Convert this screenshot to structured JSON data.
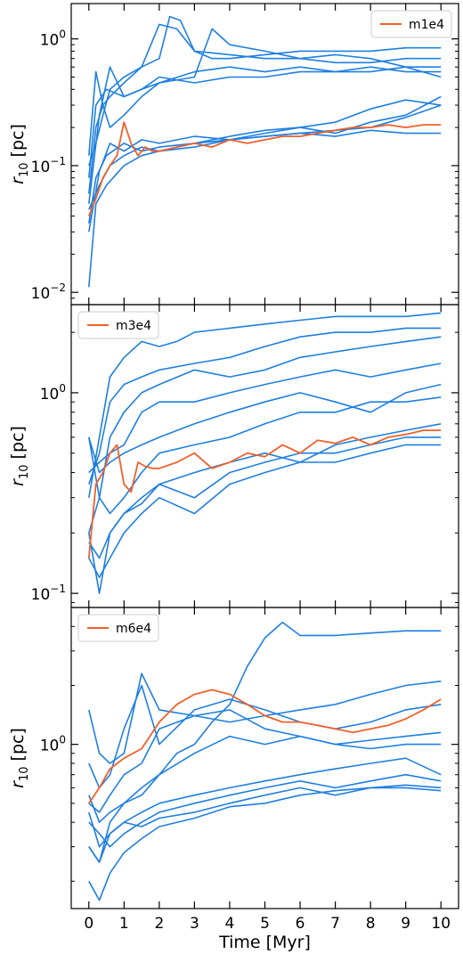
{
  "colors": {
    "series_blue": "#1f7fe0",
    "highlight": "#f0602a",
    "axes": "#000000"
  },
  "x_axis": {
    "label": "Time [Myr]",
    "ticks": [
      0,
      1,
      2,
      3,
      4,
      5,
      6,
      7,
      8,
      9,
      10
    ],
    "tick_labels": [
      "0",
      "1",
      "2",
      "3",
      "4",
      "5",
      "6",
      "7",
      "8",
      "9",
      "10"
    ],
    "range": [
      -0.5,
      10.5
    ]
  },
  "chart_data": [
    {
      "type": "line",
      "yscale": "log",
      "ylabel_main": "r",
      "ylabel_sub": "10",
      "ylabel_unit": "[pc]",
      "ylim": [
        0.008,
        1.9
      ],
      "yticks": [
        {
          "value": 1.0,
          "base": "10",
          "exp": "0"
        },
        {
          "value": 0.1,
          "base": "10",
          "exp": "−1"
        },
        {
          "value": 0.01,
          "base": "10",
          "exp": "−2"
        }
      ],
      "legend": {
        "label": "m1e4",
        "position": "top-right"
      },
      "highlight": {
        "x": [
          0,
          0.2,
          0.4,
          0.6,
          0.8,
          1,
          1.2,
          1.4,
          1.6,
          1.8,
          2,
          2.5,
          3,
          3.5,
          4,
          4.5,
          5,
          5.5,
          6,
          6.5,
          7,
          7.5,
          8,
          8.5,
          9,
          9.5,
          10
        ],
        "y": [
          0.04,
          0.055,
          0.08,
          0.1,
          0.12,
          0.22,
          0.15,
          0.12,
          0.14,
          0.13,
          0.13,
          0.14,
          0.15,
          0.14,
          0.16,
          0.15,
          0.16,
          0.17,
          0.17,
          0.18,
          0.19,
          0.2,
          0.2,
          0.21,
          0.2,
          0.21,
          0.21
        ]
      },
      "others": [
        {
          "x": [
            0,
            0.2,
            0.4,
            0.6,
            1,
            1.5,
            2,
            2.5,
            3,
            3.5,
            4,
            5,
            6,
            7,
            8,
            9,
            10
          ],
          "y": [
            0.06,
            0.2,
            0.3,
            0.35,
            0.45,
            0.6,
            1.3,
            1.2,
            0.8,
            0.7,
            0.7,
            0.75,
            0.8,
            0.8,
            0.8,
            0.85,
            0.85
          ]
        },
        {
          "x": [
            0,
            0.2,
            0.4,
            0.6,
            1,
            1.5,
            2,
            2.3,
            2.6,
            3,
            4,
            5,
            6,
            7,
            8,
            9,
            10
          ],
          "y": [
            0.1,
            0.15,
            0.25,
            0.4,
            0.5,
            0.6,
            0.7,
            1.5,
            1.4,
            0.8,
            0.75,
            0.7,
            0.7,
            0.65,
            0.65,
            0.7,
            0.7
          ]
        },
        {
          "x": [
            0,
            0.2,
            0.4,
            0.6,
            1,
            1.5,
            2,
            3,
            3.5,
            4,
            5,
            6,
            7,
            8,
            9,
            10
          ],
          "y": [
            0.12,
            0.55,
            0.3,
            0.2,
            0.25,
            0.35,
            0.45,
            0.5,
            1.2,
            0.9,
            0.8,
            0.7,
            0.75,
            0.7,
            0.6,
            0.6
          ]
        },
        {
          "x": [
            0,
            0.2,
            0.5,
            1,
            1.5,
            2,
            3,
            4,
            5,
            6,
            7,
            8,
            9,
            10
          ],
          "y": [
            0.08,
            0.3,
            0.4,
            0.35,
            0.4,
            0.45,
            0.55,
            0.6,
            0.55,
            0.6,
            0.55,
            0.55,
            0.6,
            0.5
          ]
        },
        {
          "x": [
            0,
            0.3,
            0.6,
            1,
            1.5,
            2,
            3,
            4,
            5,
            6,
            7,
            8,
            9,
            10
          ],
          "y": [
            0.05,
            0.25,
            0.6,
            0.35,
            0.4,
            0.5,
            0.45,
            0.5,
            0.5,
            0.55,
            0.55,
            0.6,
            0.55,
            0.55
          ]
        },
        {
          "x": [
            0,
            0.3,
            0.6,
            1,
            1.5,
            2,
            3,
            4,
            5,
            6,
            7,
            8,
            9,
            10
          ],
          "y": [
            0.03,
            0.09,
            0.15,
            0.13,
            0.16,
            0.15,
            0.17,
            0.16,
            0.18,
            0.2,
            0.18,
            0.22,
            0.25,
            0.35
          ]
        },
        {
          "x": [
            0,
            0.2,
            0.5,
            1,
            1.5,
            2,
            3,
            4,
            5,
            6,
            7,
            8,
            9,
            10
          ],
          "y": [
            0.011,
            0.05,
            0.07,
            0.1,
            0.12,
            0.13,
            0.14,
            0.16,
            0.17,
            0.18,
            0.19,
            0.2,
            0.24,
            0.3
          ]
        },
        {
          "x": [
            0,
            0.2,
            0.5,
            1,
            1.5,
            2,
            3,
            4,
            5,
            6,
            7,
            8,
            9,
            10
          ],
          "y": [
            0.035,
            0.08,
            0.12,
            0.15,
            0.13,
            0.14,
            0.15,
            0.17,
            0.19,
            0.2,
            0.22,
            0.28,
            0.33,
            0.3
          ]
        },
        {
          "x": [
            0,
            0.3,
            0.6,
            1,
            1.5,
            2,
            3,
            4,
            5,
            6,
            7,
            8,
            9,
            10
          ],
          "y": [
            0.045,
            0.07,
            0.1,
            0.12,
            0.14,
            0.13,
            0.15,
            0.16,
            0.17,
            0.18,
            0.17,
            0.19,
            0.18,
            0.18
          ]
        }
      ]
    },
    {
      "type": "line",
      "yscale": "log",
      "ylabel_main": "r",
      "ylabel_sub": "10",
      "ylabel_unit": "[pc]",
      "ylim": [
        0.085,
        2.75
      ],
      "yticks": [
        {
          "value": 1.0,
          "base": "10",
          "exp": "0"
        },
        {
          "value": 0.1,
          "base": "10",
          "exp": "−1"
        }
      ],
      "legend": {
        "label": "m3e4",
        "position": "top-left"
      },
      "highlight": {
        "x": [
          0,
          0.2,
          0.4,
          0.6,
          0.8,
          1,
          1.2,
          1.4,
          1.6,
          1.8,
          2,
          2.5,
          3,
          3.5,
          4,
          4.5,
          5,
          5.5,
          6,
          6.5,
          7,
          7.5,
          8,
          8.5,
          9,
          9.5,
          10
        ],
        "y": [
          0.15,
          0.35,
          0.4,
          0.5,
          0.55,
          0.35,
          0.32,
          0.45,
          0.43,
          0.42,
          0.42,
          0.45,
          0.5,
          0.42,
          0.45,
          0.5,
          0.48,
          0.55,
          0.5,
          0.58,
          0.56,
          0.6,
          0.55,
          0.6,
          0.62,
          0.65,
          0.65
        ]
      },
      "others": [
        {
          "x": [
            0,
            0.3,
            0.6,
            1,
            1.5,
            2,
            2.5,
            3,
            4,
            5,
            6,
            7,
            8,
            9,
            10
          ],
          "y": [
            0.3,
            0.6,
            1.2,
            1.5,
            1.8,
            1.7,
            1.8,
            2.0,
            2.1,
            2.2,
            2.3,
            2.4,
            2.4,
            2.4,
            2.5
          ]
        },
        {
          "x": [
            0,
            0.3,
            0.6,
            1,
            1.5,
            2,
            3,
            4,
            5,
            6,
            7,
            8,
            9,
            10
          ],
          "y": [
            0.35,
            0.5,
            0.9,
            1.1,
            1.2,
            1.3,
            1.4,
            1.5,
            1.7,
            1.9,
            2.0,
            2.0,
            2.1,
            2.1
          ]
        },
        {
          "x": [
            0,
            0.3,
            0.6,
            1,
            1.5,
            2,
            3,
            4,
            5,
            6,
            7,
            8,
            9,
            10
          ],
          "y": [
            0.2,
            0.3,
            0.6,
            0.8,
            1.0,
            1.1,
            1.3,
            1.2,
            1.3,
            1.5,
            1.6,
            1.7,
            1.8,
            1.9
          ]
        },
        {
          "x": [
            0,
            0.3,
            0.6,
            1,
            1.5,
            2,
            3,
            4,
            5,
            6,
            7,
            8,
            9,
            10
          ],
          "y": [
            0.4,
            0.45,
            0.5,
            0.55,
            0.8,
            0.9,
            0.9,
            1.0,
            1.1,
            1.2,
            1.3,
            1.2,
            1.3,
            1.4
          ]
        },
        {
          "x": [
            0,
            0.3,
            0.6,
            1,
            1.5,
            2,
            3,
            4,
            5,
            6,
            7,
            8,
            9,
            10
          ],
          "y": [
            0.6,
            0.4,
            0.45,
            0.5,
            0.55,
            0.6,
            0.7,
            0.8,
            0.9,
            1.0,
            0.9,
            0.8,
            1.0,
            1.1
          ]
        },
        {
          "x": [
            0,
            0.3,
            0.6,
            1,
            1.5,
            2,
            3,
            4,
            5,
            6,
            7,
            8,
            9,
            10
          ],
          "y": [
            0.6,
            0.3,
            0.25,
            0.3,
            0.4,
            0.5,
            0.55,
            0.6,
            0.7,
            0.8,
            0.8,
            0.9,
            0.9,
            0.95
          ]
        },
        {
          "x": [
            0,
            0.3,
            0.6,
            1,
            1.5,
            2,
            3,
            4,
            5,
            6,
            7,
            8,
            9,
            10
          ],
          "y": [
            0.2,
            0.1,
            0.2,
            0.25,
            0.3,
            0.35,
            0.4,
            0.45,
            0.5,
            0.45,
            0.55,
            0.6,
            0.65,
            0.7
          ]
        },
        {
          "x": [
            0,
            0.3,
            0.6,
            1,
            1.5,
            2,
            3,
            4,
            5,
            6,
            7,
            8,
            9,
            10
          ],
          "y": [
            0.18,
            0.15,
            0.2,
            0.25,
            0.28,
            0.35,
            0.3,
            0.4,
            0.45,
            0.5,
            0.5,
            0.55,
            0.6,
            0.6
          ]
        },
        {
          "x": [
            0,
            0.3,
            0.6,
            1,
            1.5,
            2,
            3,
            4,
            5,
            6,
            7,
            8,
            9,
            10
          ],
          "y": [
            0.15,
            0.12,
            0.15,
            0.2,
            0.25,
            0.3,
            0.25,
            0.35,
            0.4,
            0.45,
            0.45,
            0.5,
            0.55,
            0.55
          ]
        }
      ]
    },
    {
      "type": "line",
      "yscale": "log",
      "ylabel_main": "r",
      "ylabel_sub": "10",
      "ylabel_unit": "[pc]",
      "ylim": [
        0.145,
        5.0
      ],
      "yticks": [
        {
          "value": 1.0,
          "base": "10",
          "exp": "0"
        }
      ],
      "legend": {
        "label": "m6e4",
        "position": "top-left"
      },
      "highlight": {
        "x": [
          0,
          0.3,
          0.6,
          1,
          1.5,
          2,
          2.5,
          3,
          3.5,
          4,
          4.5,
          5,
          5.5,
          6,
          6.5,
          7,
          7.5,
          8,
          8.5,
          9,
          9.5,
          10
        ],
        "y": [
          0.5,
          0.6,
          0.75,
          0.85,
          0.95,
          1.3,
          1.6,
          1.8,
          1.9,
          1.8,
          1.6,
          1.4,
          1.3,
          1.3,
          1.25,
          1.2,
          1.15,
          1.2,
          1.25,
          1.35,
          1.5,
          1.7
        ]
      },
      "others": [
        {
          "x": [
            0,
            0.3,
            0.6,
            1,
            1.5,
            2,
            2.5,
            3,
            3.5,
            4,
            4.5,
            5,
            5.5,
            6,
            7,
            8,
            9,
            10
          ],
          "y": [
            0.3,
            0.25,
            0.4,
            0.5,
            0.55,
            0.7,
            0.9,
            1.0,
            1.3,
            1.6,
            2.5,
            3.5,
            4.2,
            3.6,
            3.6,
            3.7,
            3.8,
            3.8
          ]
        },
        {
          "x": [
            0,
            0.3,
            0.6,
            1,
            1.5,
            2,
            3,
            4,
            5,
            6,
            7,
            8,
            9,
            10
          ],
          "y": [
            1.5,
            0.9,
            0.8,
            0.9,
            2.3,
            1.5,
            1.4,
            1.3,
            1.4,
            1.5,
            1.6,
            1.8,
            2.0,
            2.1
          ]
        },
        {
          "x": [
            0,
            0.3,
            0.6,
            1,
            1.5,
            2,
            3,
            4,
            5,
            6,
            7,
            8,
            9,
            10
          ],
          "y": [
            0.8,
            0.6,
            0.7,
            1.2,
            2.0,
            1.0,
            1.5,
            1.7,
            1.5,
            1.3,
            1.2,
            1.3,
            1.5,
            1.6
          ]
        },
        {
          "x": [
            0,
            0.3,
            0.6,
            1,
            1.5,
            2,
            3,
            4,
            5,
            6,
            7,
            8,
            9,
            10
          ],
          "y": [
            0.5,
            0.45,
            0.55,
            0.7,
            0.8,
            1.2,
            1.4,
            1.5,
            1.2,
            1.1,
            1.0,
            1.05,
            1.1,
            1.15
          ]
        },
        {
          "x": [
            0,
            0.3,
            0.6,
            1,
            1.5,
            2,
            3,
            4,
            5,
            6,
            7,
            8,
            9,
            10
          ],
          "y": [
            0.55,
            0.4,
            0.45,
            0.5,
            0.6,
            0.7,
            0.9,
            1.1,
            1.0,
            1.1,
            1.0,
            0.95,
            1.0,
            1.0
          ]
        },
        {
          "x": [
            0,
            0.3,
            0.6,
            1,
            1.5,
            2,
            3,
            4,
            5,
            6,
            7,
            8,
            9,
            10
          ],
          "y": [
            0.45,
            0.3,
            0.35,
            0.4,
            0.45,
            0.5,
            0.55,
            0.6,
            0.65,
            0.7,
            0.75,
            0.8,
            0.85,
            0.7
          ]
        },
        {
          "x": [
            0,
            0.3,
            0.6,
            1,
            1.5,
            2,
            3,
            4,
            5,
            6,
            7,
            8,
            9,
            10
          ],
          "y": [
            0.4,
            0.35,
            0.3,
            0.35,
            0.4,
            0.45,
            0.5,
            0.55,
            0.6,
            0.65,
            0.6,
            0.65,
            0.7,
            0.65
          ]
        },
        {
          "x": [
            0,
            0.3,
            0.6,
            1,
            1.5,
            2,
            3,
            4,
            5,
            6,
            7,
            8,
            9,
            10
          ],
          "y": [
            0.3,
            0.25,
            0.35,
            0.4,
            0.38,
            0.42,
            0.45,
            0.5,
            0.55,
            0.6,
            0.55,
            0.6,
            0.62,
            0.6
          ]
        },
        {
          "x": [
            0,
            0.3,
            0.6,
            1,
            1.5,
            2,
            3,
            4,
            5,
            6,
            7,
            8,
            9,
            10
          ],
          "y": [
            0.2,
            0.16,
            0.22,
            0.28,
            0.33,
            0.38,
            0.42,
            0.48,
            0.5,
            0.55,
            0.58,
            0.6,
            0.6,
            0.58
          ]
        }
      ]
    }
  ]
}
